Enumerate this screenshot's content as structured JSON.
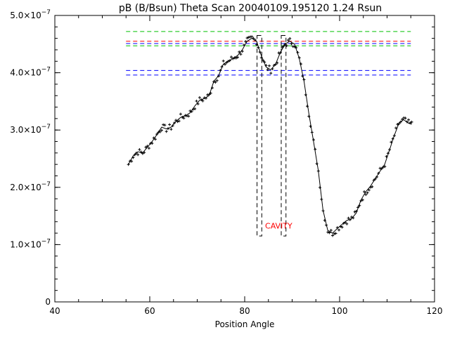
{
  "chart_data": {
    "type": "line",
    "title": "pB (B/Bsun) Theta Scan 20040109.195120 1.24 Rsun",
    "xlabel": "Position Angle",
    "ylabel": "",
    "xlim": [
      40,
      120
    ],
    "ylim": [
      0,
      5e-07
    ],
    "grid": false,
    "x_ticks": [
      {
        "value": 40,
        "label": "40"
      },
      {
        "value": 60,
        "label": "60"
      },
      {
        "value": 80,
        "label": "80"
      },
      {
        "value": 100,
        "label": "100"
      },
      {
        "value": 120,
        "label": "120"
      }
    ],
    "x_minor_step": 5,
    "y_ticks": [
      {
        "value": 0,
        "label": "0"
      },
      {
        "value": 1e-07,
        "label": "1.0×10",
        "exp": "−7"
      },
      {
        "value": 2e-07,
        "label": "2.0×10",
        "exp": "−7"
      },
      {
        "value": 3e-07,
        "label": "3.0×10",
        "exp": "−7"
      },
      {
        "value": 4e-07,
        "label": "4.0×10",
        "exp": "−7"
      },
      {
        "value": 5e-07,
        "label": "5.0×10",
        "exp": "−7"
      }
    ],
    "y_minor_step": 2e-08,
    "series": [
      {
        "style": "smoothed-line",
        "color": "#000000",
        "x": [
          55.5,
          56.5,
          57.5,
          58.5,
          59.5,
          60.5,
          61.5,
          62.5,
          63.5,
          64.5,
          65.5,
          66.5,
          67.5,
          68.5,
          69.5,
          70.5,
          71.5,
          72.5,
          73.5,
          74.5,
          75.5,
          76.5,
          77.5,
          78.5,
          79.5,
          80.5,
          81.5,
          82.5,
          83.5,
          84.5,
          85.5,
          86.5,
          87.5,
          88.5,
          89.5,
          90.5,
          91.5,
          92.5,
          93.5,
          94.5,
          95.5,
          96.5,
          97.5,
          98.5,
          99.5,
          100.5,
          101.5,
          102.5,
          103.5,
          104.5,
          105.5,
          106.5,
          107.5,
          108.5,
          109.5,
          110.5,
          111.5,
          112.5,
          113.5,
          114.5,
          115.2
        ],
        "y": [
          2.4e-07,
          2.55e-07,
          2.62e-07,
          2.6e-07,
          2.7e-07,
          2.8e-07,
          2.92e-07,
          3.05e-07,
          3.02e-07,
          3.05e-07,
          3.15e-07,
          3.22e-07,
          3.25e-07,
          3.3e-07,
          3.42e-07,
          3.52e-07,
          3.55e-07,
          3.6e-07,
          3.85e-07,
          3.95e-07,
          4.15e-07,
          4.2e-07,
          4.25e-07,
          4.3e-07,
          4.4e-07,
          4.55e-07,
          4.6e-07,
          4.55e-07,
          4.3e-07,
          4.1e-07,
          4.05e-07,
          4.15e-07,
          4.35e-07,
          4.5e-07,
          4.55e-07,
          4.5e-07,
          4.25e-07,
          3.85e-07,
          3.3e-07,
          2.8e-07,
          2.3e-07,
          1.6e-07,
          1.25e-07,
          1.2e-07,
          1.28e-07,
          1.35e-07,
          1.42e-07,
          1.45e-07,
          1.55e-07,
          1.78e-07,
          1.92e-07,
          2.02e-07,
          2.15e-07,
          2.28e-07,
          2.4e-07,
          2.65e-07,
          2.9e-07,
          3.12e-07,
          3.18e-07,
          3.12e-07,
          3.1e-07
        ]
      },
      {
        "style": "scatter-plus",
        "color": "#000000",
        "jitter_of": 0,
        "points_per_unit": 3,
        "jitter_amplitude": 6e-09
      }
    ],
    "reference_lines": [
      {
        "y": 4.72e-07,
        "color": "#00c000",
        "dash": true,
        "x_from": 55,
        "x_to": 115
      },
      {
        "y": 4.55e-07,
        "color": "#ff0000",
        "dash": true,
        "x_from": 55,
        "x_to": 115
      },
      {
        "y": 4.51e-07,
        "color": "#0000ff",
        "dash": true,
        "x_from": 55,
        "x_to": 115
      },
      {
        "y": 4.47e-07,
        "color": "#00c000",
        "dash": true,
        "x_from": 55,
        "x_to": 115
      },
      {
        "y": 4.04e-07,
        "color": "#0000ff",
        "dash": true,
        "x_from": 55,
        "x_to": 115
      },
      {
        "y": 3.96e-07,
        "color": "#0000ff",
        "dash": true,
        "x_from": 55,
        "x_to": 115
      }
    ],
    "cavity_boxes": [
      {
        "x_from": 82.6,
        "x_to": 83.6,
        "y_from": 1.15e-07,
        "y_to": 4.65e-07
      },
      {
        "x_from": 87.7,
        "x_to": 88.7,
        "y_from": 1.15e-07,
        "y_to": 4.65e-07
      }
    ],
    "annotations": [
      {
        "text": "CAVITY",
        "x": 84.3,
        "y": 1.28e-07,
        "color": "#ff0000"
      }
    ]
  }
}
